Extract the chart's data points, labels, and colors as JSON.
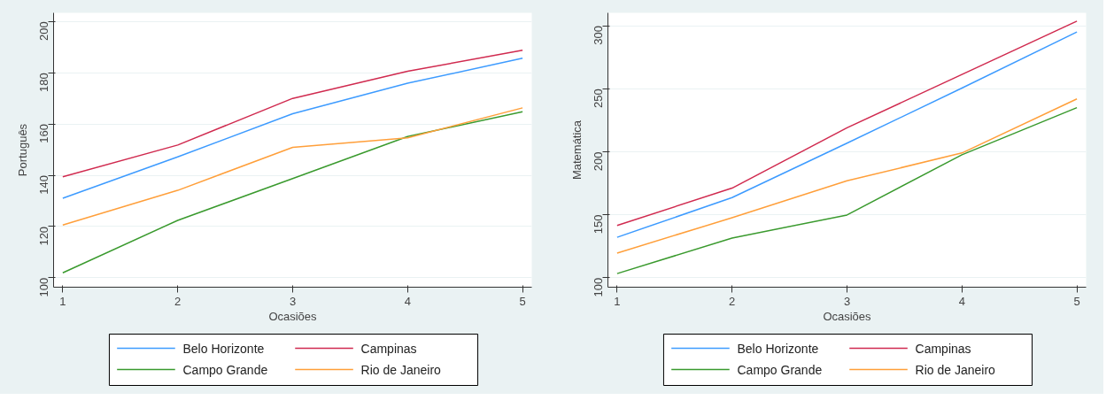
{
  "chart_data": [
    {
      "type": "line",
      "xlabel": "Ocasiões",
      "ylabel": "Português",
      "x": [
        1,
        2,
        3,
        4,
        5
      ],
      "xlim": [
        0.92,
        5.08
      ],
      "ylim": [
        96.3,
        203.4
      ],
      "xticks": [
        1,
        2,
        3,
        4,
        5
      ],
      "yticks": [
        100,
        120,
        140,
        160,
        180,
        200
      ],
      "grid": "y",
      "legend": "bottom",
      "series": [
        {
          "name": "Belo Horizonte",
          "color": "#3d9bff",
          "values": [
            131,
            147.2,
            164,
            175.9,
            185.7
          ]
        },
        {
          "name": "Campinas",
          "color": "#d02a4f",
          "values": [
            139.4,
            151.8,
            170,
            180.6,
            188.8
          ]
        },
        {
          "name": "Campo Grande",
          "color": "#3a9a2e",
          "values": [
            101.9,
            122.4,
            138.7,
            155.1,
            164.8
          ]
        },
        {
          "name": "Rio de Janeiro",
          "color": "#ff9f3a",
          "values": [
            120.6,
            134.1,
            150.9,
            154.6,
            166.3
          ]
        }
      ]
    },
    {
      "type": "line",
      "xlabel": "Ocasiões",
      "ylabel": "Matemática",
      "x": [
        1,
        2,
        3,
        4,
        5
      ],
      "xlim": [
        0.92,
        5.08
      ],
      "ylim": [
        92.5,
        310.2
      ],
      "xticks": [
        1,
        2,
        3,
        4,
        5
      ],
      "yticks": [
        100,
        150,
        200,
        250,
        300
      ],
      "grid": "y",
      "legend": "bottom",
      "series": [
        {
          "name": "Belo Horizonte",
          "color": "#3d9bff",
          "values": [
            132.1,
            163.6,
            206.8,
            250.5,
            295
          ]
        },
        {
          "name": "Campinas",
          "color": "#d02a4f",
          "values": [
            141.5,
            171.1,
            219,
            261.3,
            303.6
          ]
        },
        {
          "name": "Campo Grande",
          "color": "#3a9a2e",
          "values": [
            103.3,
            131.5,
            149.8,
            197.6,
            235
          ]
        },
        {
          "name": "Rio de Janeiro",
          "color": "#ff9f3a",
          "values": [
            119.6,
            147.6,
            176.9,
            199,
            241.9
          ]
        }
      ]
    }
  ]
}
